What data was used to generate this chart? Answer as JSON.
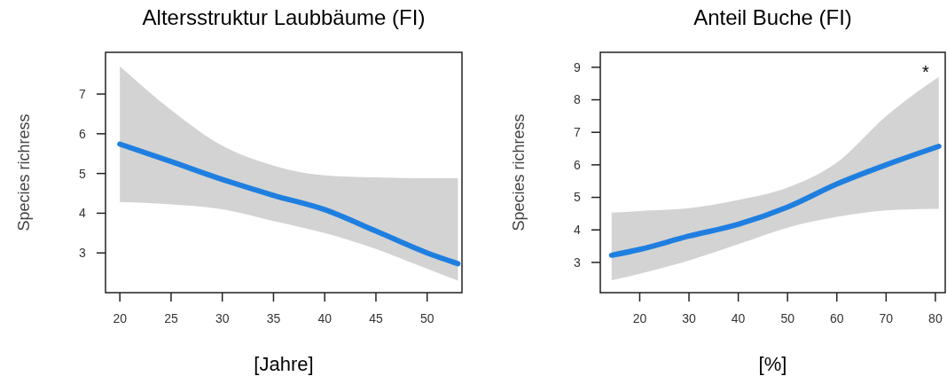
{
  "chart_data": [
    {
      "type": "line",
      "title": "Altersstruktur Laubbäume (FI)",
      "xlabel": "[Jahre]",
      "ylabel": "Species richress",
      "xlim": [
        18.6,
        53.4
      ],
      "ylim": [
        2,
        8.05
      ],
      "xticks": [
        20,
        25,
        30,
        35,
        40,
        45,
        50
      ],
      "yticks": [
        3,
        4,
        5,
        6,
        7
      ],
      "grid": false,
      "series": [
        {
          "color": "#1f7fe0",
          "x": [
            20,
            25,
            30,
            35,
            40,
            45,
            50,
            53
          ],
          "values": [
            5.74,
            5.3,
            4.85,
            4.45,
            4.09,
            3.55,
            3.0,
            2.73
          ],
          "upper": [
            7.7,
            6.6,
            5.7,
            5.2,
            4.95,
            4.9,
            4.88,
            4.88
          ],
          "lower": [
            4.28,
            4.22,
            4.1,
            3.8,
            3.5,
            3.1,
            2.6,
            2.3
          ]
        }
      ]
    },
    {
      "type": "line",
      "title": "Anteil Buche (FI)",
      "xlabel": "[%]",
      "ylabel": "Species richress",
      "xlim": [
        12,
        82
      ],
      "ylim": [
        2.07,
        9.46
      ],
      "xticks": [
        20,
        30,
        40,
        50,
        60,
        70,
        80
      ],
      "yticks": [
        3,
        4,
        5,
        6,
        7,
        8,
        9
      ],
      "grid": false,
      "annotations": [
        "*"
      ],
      "series": [
        {
          "color": "#1f7fe0",
          "x": [
            14.3,
            20,
            30,
            40,
            50,
            60,
            70,
            80.7
          ],
          "values": [
            3.22,
            3.4,
            3.81,
            4.17,
            4.7,
            5.41,
            6.0,
            6.57
          ],
          "upper": [
            4.53,
            4.58,
            4.67,
            4.92,
            5.3,
            6.07,
            7.5,
            8.7
          ],
          "lower": [
            2.45,
            2.65,
            3.06,
            3.56,
            4.07,
            4.4,
            4.6,
            4.65
          ]
        }
      ]
    }
  ]
}
